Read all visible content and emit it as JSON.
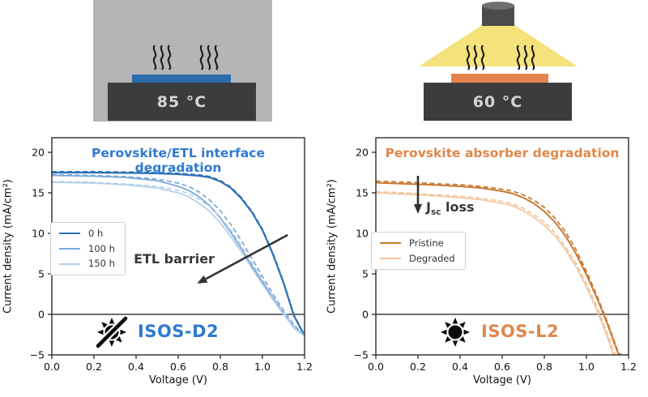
{
  "figure": {
    "scenes": {
      "dark_heat": {
        "temperature": "85 °C",
        "sample_color": "#2b6cad",
        "plate_color": "#3c3c3e",
        "background_color": "#b5b5b7"
      },
      "light_soak": {
        "temperature": "60 °C",
        "sample_color": "#e58450",
        "plate_color": "#3c3c3e",
        "beam_color": "#f5e27b",
        "lamp_color": "#4b4b4d"
      }
    }
  },
  "chart_data": [
    {
      "type": "line",
      "title": "Perovskite/ETL interface degradation",
      "title_color": "#2e7ad1",
      "xlabel": "Voltage (V)",
      "ylabel": "Current density (mA/cm²)",
      "xlim": [
        0.0,
        1.2
      ],
      "ylim": [
        -5,
        21.8
      ],
      "xticks": [
        "0.0",
        "0.2",
        "0.4",
        "0.6",
        "0.8",
        "1.0",
        "1.2"
      ],
      "yticks": [
        "-5",
        "0",
        "5",
        "10",
        "15",
        "20"
      ],
      "grid": false,
      "zero_line": true,
      "legend": {
        "position": "center-left",
        "entries": [
          {
            "label": "0 h",
            "color": "#2e72b8"
          },
          {
            "label": "100 h",
            "color": "#7aa7d9"
          },
          {
            "label": "150 h",
            "color": "#b3cfe9"
          }
        ]
      },
      "annotation": {
        "text": "ETL barrier",
        "arrow": {
          "from_xy": [
            1.12,
            9.8
          ],
          "to_xy": [
            0.69,
            3.8
          ]
        }
      },
      "badge": {
        "icon": "crossed-sun-icon",
        "label": "ISOS-D2",
        "color": "#2e7ad1"
      },
      "series": [
        {
          "name": "0 h forward",
          "color": "#2e72b8",
          "style": "solid",
          "width": 2.2,
          "points": [
            [
              0,
              17.5
            ],
            [
              0.2,
              17.5
            ],
            [
              0.4,
              17.45
            ],
            [
              0.5,
              17.4
            ],
            [
              0.6,
              17.3
            ],
            [
              0.7,
              17.1
            ],
            [
              0.75,
              16.9
            ],
            [
              0.8,
              16.4
            ],
            [
              0.85,
              15.6
            ],
            [
              0.9,
              14.3
            ],
            [
              0.95,
              12.6
            ],
            [
              1.0,
              10.4
            ],
            [
              1.05,
              7.4
            ],
            [
              1.1,
              3.9
            ],
            [
              1.15,
              -0.2
            ],
            [
              1.2,
              -2.6
            ]
          ]
        },
        {
          "name": "0 h reverse",
          "color": "#2e72b8",
          "style": "dashed",
          "width": 2.0,
          "points": [
            [
              0,
              17.6
            ],
            [
              0.2,
              17.6
            ],
            [
              0.4,
              17.55
            ],
            [
              0.5,
              17.5
            ],
            [
              0.6,
              17.4
            ],
            [
              0.7,
              17.2
            ],
            [
              0.75,
              17.0
            ],
            [
              0.8,
              16.5
            ],
            [
              0.85,
              15.7
            ],
            [
              0.9,
              14.4
            ],
            [
              0.95,
              12.7
            ],
            [
              1.0,
              10.5
            ],
            [
              1.05,
              7.5
            ],
            [
              1.1,
              4.0
            ],
            [
              1.15,
              -0.1
            ],
            [
              1.2,
              -2.6
            ]
          ]
        },
        {
          "name": "100 h forward",
          "color": "#7aa7d9",
          "style": "solid",
          "width": 1.8,
          "points": [
            [
              0,
              17.15
            ],
            [
              0.2,
              17.05
            ],
            [
              0.35,
              16.9
            ],
            [
              0.5,
              16.5
            ],
            [
              0.6,
              15.8
            ],
            [
              0.65,
              15.3
            ],
            [
              0.7,
              14.5
            ],
            [
              0.75,
              13.4
            ],
            [
              0.8,
              11.9
            ],
            [
              0.85,
              10.1
            ],
            [
              0.9,
              8.1
            ],
            [
              0.95,
              6.0
            ],
            [
              1.0,
              4.0
            ],
            [
              1.05,
              2.1
            ],
            [
              1.1,
              0.2
            ],
            [
              1.15,
              -1.5
            ],
            [
              1.2,
              -2.6
            ]
          ]
        },
        {
          "name": "100 h reverse",
          "color": "#7aa7d9",
          "style": "dashed",
          "width": 1.7,
          "points": [
            [
              0,
              17.25
            ],
            [
              0.2,
              17.15
            ],
            [
              0.35,
              17.0
            ],
            [
              0.5,
              16.7
            ],
            [
              0.6,
              16.2
            ],
            [
              0.65,
              15.8
            ],
            [
              0.7,
              15.1
            ],
            [
              0.75,
              14.1
            ],
            [
              0.8,
              12.8
            ],
            [
              0.85,
              11.1
            ],
            [
              0.9,
              9.1
            ],
            [
              0.95,
              6.9
            ],
            [
              1.0,
              4.7
            ],
            [
              1.05,
              2.5
            ],
            [
              1.1,
              0.5
            ],
            [
              1.15,
              -1.3
            ],
            [
              1.2,
              -2.6
            ]
          ]
        },
        {
          "name": "150 h forward",
          "color": "#b3cfe9",
          "style": "solid",
          "width": 1.7,
          "points": [
            [
              0,
              16.3
            ],
            [
              0.2,
              16.2
            ],
            [
              0.35,
              16.0
            ],
            [
              0.5,
              15.6
            ],
            [
              0.6,
              15.0
            ],
            [
              0.65,
              14.5
            ],
            [
              0.7,
              13.7
            ],
            [
              0.75,
              12.7
            ],
            [
              0.8,
              11.3
            ],
            [
              0.85,
              9.6
            ],
            [
              0.9,
              7.7
            ],
            [
              0.95,
              5.7
            ],
            [
              1.0,
              3.7
            ],
            [
              1.05,
              1.8
            ],
            [
              1.1,
              0.0
            ],
            [
              1.15,
              -1.7
            ],
            [
              1.2,
              -2.7
            ]
          ]
        },
        {
          "name": "150 h reverse",
          "color": "#b3cfe9",
          "style": "dashed",
          "width": 1.6,
          "points": [
            [
              0,
              16.4
            ],
            [
              0.2,
              16.3
            ],
            [
              0.35,
              16.1
            ],
            [
              0.5,
              15.8
            ],
            [
              0.6,
              15.3
            ],
            [
              0.65,
              14.9
            ],
            [
              0.7,
              14.2
            ],
            [
              0.75,
              13.3
            ],
            [
              0.8,
              12.0
            ],
            [
              0.85,
              10.4
            ],
            [
              0.9,
              8.5
            ],
            [
              0.95,
              6.4
            ],
            [
              1.0,
              4.3
            ],
            [
              1.05,
              2.2
            ],
            [
              1.1,
              0.3
            ],
            [
              1.15,
              -1.5
            ],
            [
              1.2,
              -2.7
            ]
          ]
        }
      ]
    },
    {
      "type": "line",
      "title": "Perovskite absorber degradation",
      "title_color": "#e0874a",
      "xlabel": "Voltage (V)",
      "ylabel": "Current density (mA/cm²)",
      "xlim": [
        0.0,
        1.2
      ],
      "ylim": [
        -5,
        21.8
      ],
      "xticks": [
        "0.0",
        "0.2",
        "0.4",
        "0.6",
        "0.8",
        "1.0",
        "1.2"
      ],
      "yticks": [
        "-5",
        "0",
        "5",
        "10",
        "15",
        "20"
      ],
      "grid": false,
      "zero_line": true,
      "legend": {
        "position": "center-left",
        "entries": [
          {
            "label": "Pristine",
            "color": "#c87a33"
          },
          {
            "label": "Degraded",
            "color": "#f2c69e"
          }
        ]
      },
      "annotation": {
        "text": "Jsc loss",
        "j": "J",
        "sub": "sc",
        "rest": " loss",
        "arrow": {
          "from_xy": [
            0.2,
            17.1
          ],
          "to_xy": [
            0.2,
            12.4
          ]
        }
      },
      "badge": {
        "icon": "sun-icon",
        "label": "ISOS-L2",
        "color": "#e0874a"
      },
      "series": [
        {
          "name": "Pristine forward",
          "color": "#c87a33",
          "style": "solid",
          "width": 2.0,
          "points": [
            [
              0,
              16.25
            ],
            [
              0.1,
              16.15
            ],
            [
              0.2,
              16.05
            ],
            [
              0.3,
              15.95
            ],
            [
              0.4,
              15.8
            ],
            [
              0.5,
              15.6
            ],
            [
              0.6,
              15.2
            ],
            [
              0.65,
              14.9
            ],
            [
              0.7,
              14.4
            ],
            [
              0.75,
              13.7
            ],
            [
              0.8,
              12.7
            ],
            [
              0.85,
              11.4
            ],
            [
              0.9,
              9.7
            ],
            [
              0.95,
              7.5
            ],
            [
              1.0,
              4.9
            ],
            [
              1.05,
              2.0
            ],
            [
              1.1,
              -1.2
            ],
            [
              1.15,
              -4.8
            ],
            [
              1.16,
              -5.2
            ]
          ]
        },
        {
          "name": "Pristine reverse",
          "color": "#c87a33",
          "style": "dashed",
          "width": 1.8,
          "points": [
            [
              0,
              16.45
            ],
            [
              0.1,
              16.35
            ],
            [
              0.2,
              16.25
            ],
            [
              0.3,
              16.1
            ],
            [
              0.4,
              16.0
            ],
            [
              0.5,
              15.8
            ],
            [
              0.6,
              15.45
            ],
            [
              0.65,
              15.2
            ],
            [
              0.7,
              14.75
            ],
            [
              0.75,
              14.1
            ],
            [
              0.8,
              13.2
            ],
            [
              0.85,
              11.9
            ],
            [
              0.9,
              10.2
            ],
            [
              0.95,
              8.0
            ],
            [
              1.0,
              5.3
            ],
            [
              1.05,
              2.3
            ],
            [
              1.1,
              -1.0
            ],
            [
              1.15,
              -4.6
            ],
            [
              1.17,
              -5.2
            ]
          ]
        },
        {
          "name": "Degraded forward",
          "color": "#f2c69e",
          "style": "solid",
          "width": 1.8,
          "points": [
            [
              0,
              15.0
            ],
            [
              0.1,
              14.9
            ],
            [
              0.2,
              14.75
            ],
            [
              0.3,
              14.6
            ],
            [
              0.4,
              14.4
            ],
            [
              0.5,
              14.15
            ],
            [
              0.6,
              13.7
            ],
            [
              0.65,
              13.4
            ],
            [
              0.7,
              12.8
            ],
            [
              0.75,
              12.0
            ],
            [
              0.8,
              11.0
            ],
            [
              0.85,
              9.7
            ],
            [
              0.9,
              8.0
            ],
            [
              0.95,
              5.9
            ],
            [
              1.0,
              3.4
            ],
            [
              1.05,
              0.5
            ],
            [
              1.1,
              -2.8
            ],
            [
              1.13,
              -5.2
            ]
          ]
        },
        {
          "name": "Degraded reverse",
          "color": "#f2c69e",
          "style": "dashed",
          "width": 1.7,
          "points": [
            [
              0,
              15.15
            ],
            [
              0.1,
              15.05
            ],
            [
              0.2,
              14.9
            ],
            [
              0.3,
              14.75
            ],
            [
              0.4,
              14.6
            ],
            [
              0.5,
              14.35
            ],
            [
              0.6,
              13.95
            ],
            [
              0.65,
              13.65
            ],
            [
              0.7,
              13.1
            ],
            [
              0.75,
              12.35
            ],
            [
              0.8,
              11.4
            ],
            [
              0.85,
              10.1
            ],
            [
              0.9,
              8.4
            ],
            [
              0.95,
              6.3
            ],
            [
              1.0,
              3.8
            ],
            [
              1.05,
              0.9
            ],
            [
              1.1,
              -2.4
            ],
            [
              1.14,
              -5.2
            ]
          ]
        }
      ]
    }
  ]
}
